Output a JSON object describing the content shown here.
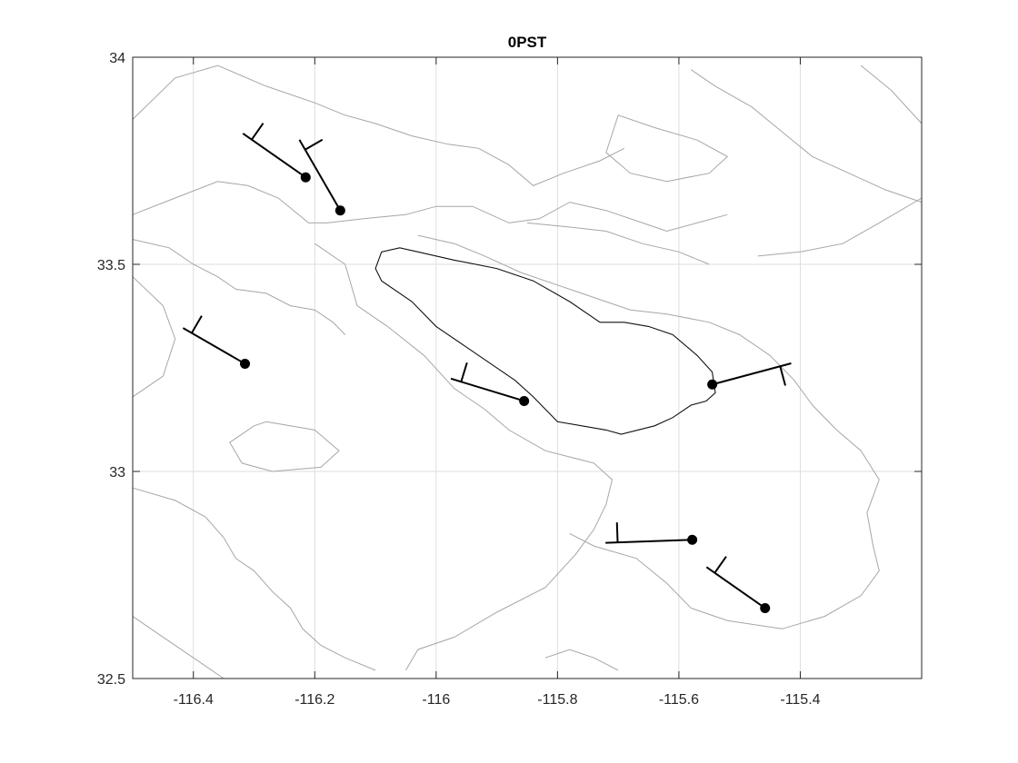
{
  "figure": {
    "title": "0PST"
  },
  "chart_data": {
    "type": "map",
    "xlim": [
      -116.5,
      -115.2
    ],
    "ylim": [
      32.5,
      34.0
    ],
    "xticks": [
      -116.4,
      -116.2,
      -116.0,
      -115.8,
      -115.6,
      -115.4
    ],
    "xtick_labels": [
      "-116.4",
      "-116.2",
      "-116",
      "-115.8",
      "-115.6",
      "-115.4"
    ],
    "yticks": [
      32.5,
      33.0,
      33.5,
      34.0
    ],
    "ytick_labels": [
      "32.5",
      "33",
      "33.5",
      "34"
    ],
    "grid": true,
    "stations": [
      {
        "lon": -116.215,
        "lat": 33.71,
        "barb_dir": 305,
        "barb_len": 0.15,
        "flags": 1
      },
      {
        "lon": -116.158,
        "lat": 33.63,
        "barb_dir": 330,
        "barb_len": 0.16,
        "flags": 1
      },
      {
        "lon": -116.315,
        "lat": 33.26,
        "barb_dir": 300,
        "barb_len": 0.14,
        "flags": 1
      },
      {
        "lon": -115.855,
        "lat": 33.17,
        "barb_dir": 287,
        "barb_len": 0.15,
        "flags": 1
      },
      {
        "lon": -115.545,
        "lat": 33.21,
        "barb_dir": 75,
        "barb_len": 0.16,
        "flags": 1
      },
      {
        "lon": -115.578,
        "lat": 32.835,
        "barb_dir": 268,
        "barb_len": 0.17,
        "flags": 1
      },
      {
        "lon": -115.458,
        "lat": 32.67,
        "barb_dir": 305,
        "barb_len": 0.14,
        "flags": 1
      }
    ],
    "lake_outline": [
      [
        -116.1,
        33.49
      ],
      [
        -116.09,
        33.53
      ],
      [
        -116.06,
        33.54
      ],
      [
        -116.03,
        33.53
      ],
      [
        -115.97,
        33.51
      ],
      [
        -115.9,
        33.49
      ],
      [
        -115.84,
        33.46
      ],
      [
        -115.78,
        33.41
      ],
      [
        -115.73,
        33.36
      ],
      [
        -115.69,
        33.36
      ],
      [
        -115.65,
        33.35
      ],
      [
        -115.61,
        33.33
      ],
      [
        -115.57,
        33.28
      ],
      [
        -115.545,
        33.24
      ],
      [
        -115.54,
        33.19
      ],
      [
        -115.555,
        33.17
      ],
      [
        -115.58,
        33.16
      ],
      [
        -115.61,
        33.13
      ],
      [
        -115.64,
        33.11
      ],
      [
        -115.695,
        33.09
      ],
      [
        -115.72,
        33.1
      ],
      [
        -115.76,
        33.11
      ],
      [
        -115.8,
        33.12
      ],
      [
        -115.84,
        33.18
      ],
      [
        -115.87,
        33.22
      ],
      [
        -115.91,
        33.26
      ],
      [
        -115.95,
        33.3
      ],
      [
        -116.0,
        33.35
      ],
      [
        -116.04,
        33.41
      ],
      [
        -116.09,
        33.46
      ]
    ],
    "contours": [
      [
        [
          -116.5,
          33.85
        ],
        [
          -116.43,
          33.95
        ],
        [
          -116.36,
          33.98
        ],
        [
          -116.28,
          33.93
        ],
        [
          -116.2,
          33.89
        ],
        [
          -116.15,
          33.86
        ],
        [
          -116.1,
          33.84
        ],
        [
          -116.04,
          33.81
        ],
        [
          -115.98,
          33.79
        ],
        [
          -115.93,
          33.78
        ],
        [
          -115.88,
          33.74
        ],
        [
          -115.84,
          33.69
        ],
        [
          -115.79,
          33.72
        ],
        [
          -115.73,
          33.75
        ],
        [
          -115.69,
          33.78
        ]
      ],
      [
        [
          -116.5,
          33.62
        ],
        [
          -116.43,
          33.66
        ],
        [
          -116.36,
          33.7
        ],
        [
          -116.31,
          33.69
        ],
        [
          -116.26,
          33.66
        ],
        [
          -116.21,
          33.6
        ],
        [
          -116.18,
          33.6
        ],
        [
          -116.12,
          33.61
        ],
        [
          -116.05,
          33.62
        ],
        [
          -116.0,
          33.64
        ],
        [
          -115.94,
          33.64
        ],
        [
          -115.88,
          33.6
        ],
        [
          -115.83,
          33.61
        ],
        [
          -115.78,
          33.65
        ],
        [
          -115.72,
          33.63
        ],
        [
          -115.66,
          33.6
        ],
        [
          -115.62,
          33.58
        ],
        [
          -115.57,
          33.6
        ],
        [
          -115.52,
          33.62
        ]
      ],
      [
        [
          -116.5,
          33.56
        ],
        [
          -116.44,
          33.54
        ],
        [
          -116.4,
          33.5
        ],
        [
          -116.36,
          33.47
        ],
        [
          -116.33,
          33.44
        ],
        [
          -116.28,
          33.43
        ],
        [
          -116.24,
          33.4
        ],
        [
          -116.2,
          33.39
        ],
        [
          -116.17,
          33.36
        ],
        [
          -116.15,
          33.33
        ]
      ],
      [
        [
          -116.5,
          33.47
        ],
        [
          -116.45,
          33.4
        ],
        [
          -116.43,
          33.32
        ],
        [
          -116.45,
          33.23
        ],
        [
          -116.5,
          33.18
        ]
      ],
      [
        [
          -116.28,
          33.12
        ],
        [
          -116.2,
          33.1
        ],
        [
          -116.16,
          33.05
        ],
        [
          -116.19,
          33.01
        ],
        [
          -116.27,
          33.0
        ],
        [
          -116.32,
          33.02
        ],
        [
          -116.34,
          33.07
        ],
        [
          -116.3,
          33.11
        ],
        [
          -116.28,
          33.12
        ]
      ],
      [
        [
          -116.5,
          32.96
        ],
        [
          -116.43,
          32.93
        ],
        [
          -116.38,
          32.89
        ],
        [
          -116.35,
          32.84
        ],
        [
          -116.33,
          32.79
        ],
        [
          -116.3,
          32.76
        ],
        [
          -116.27,
          32.71
        ],
        [
          -116.24,
          32.67
        ],
        [
          -116.22,
          32.62
        ],
        [
          -116.19,
          32.58
        ],
        [
          -116.15,
          32.55
        ],
        [
          -116.1,
          32.52
        ]
      ],
      [
        [
          -116.05,
          32.52
        ],
        [
          -116.03,
          32.57
        ],
        [
          -115.97,
          32.6
        ],
        [
          -115.9,
          32.66
        ],
        [
          -115.82,
          32.72
        ],
        [
          -115.77,
          32.8
        ],
        [
          -115.74,
          32.86
        ],
        [
          -115.72,
          32.92
        ],
        [
          -115.71,
          32.98
        ],
        [
          -115.74,
          33.02
        ],
        [
          -115.82,
          33.05
        ],
        [
          -115.88,
          33.1
        ],
        [
          -115.92,
          33.15
        ],
        [
          -115.97,
          33.2
        ],
        [
          -116.02,
          33.28
        ],
        [
          -116.08,
          33.35
        ],
        [
          -116.13,
          33.4
        ],
        [
          -116.15,
          33.5
        ],
        [
          -116.2,
          33.55
        ]
      ],
      [
        [
          -115.78,
          32.85
        ],
        [
          -115.74,
          32.82
        ],
        [
          -115.67,
          32.79
        ],
        [
          -115.62,
          32.73
        ],
        [
          -115.58,
          32.67
        ],
        [
          -115.52,
          32.64
        ],
        [
          -115.43,
          32.62
        ],
        [
          -115.36,
          32.65
        ],
        [
          -115.3,
          32.7
        ],
        [
          -115.27,
          32.76
        ],
        [
          -115.28,
          32.82
        ],
        [
          -115.29,
          32.9
        ],
        [
          -115.27,
          32.98
        ],
        [
          -115.3,
          33.05
        ],
        [
          -115.34,
          33.1
        ],
        [
          -115.38,
          33.16
        ],
        [
          -115.41,
          33.22
        ],
        [
          -115.45,
          33.28
        ],
        [
          -115.5,
          33.33
        ],
        [
          -115.55,
          33.36
        ],
        [
          -115.62,
          33.38
        ],
        [
          -115.68,
          33.39
        ],
        [
          -115.74,
          33.42
        ],
        [
          -115.8,
          33.45
        ],
        [
          -115.86,
          33.48
        ],
        [
          -115.92,
          33.52
        ],
        [
          -115.97,
          33.55
        ],
        [
          -116.03,
          33.57
        ]
      ],
      [
        [
          -115.47,
          33.52
        ],
        [
          -115.4,
          33.53
        ],
        [
          -115.33,
          33.55
        ],
        [
          -115.27,
          33.6
        ],
        [
          -115.2,
          33.66
        ]
      ],
      [
        [
          -115.3,
          33.98
        ],
        [
          -115.25,
          33.92
        ],
        [
          -115.2,
          33.84
        ]
      ],
      [
        [
          -115.58,
          33.97
        ],
        [
          -115.54,
          33.93
        ],
        [
          -115.48,
          33.88
        ],
        [
          -115.43,
          33.82
        ],
        [
          -115.38,
          33.76
        ],
        [
          -115.32,
          33.72
        ],
        [
          -115.26,
          33.68
        ],
        [
          -115.2,
          33.65
        ]
      ],
      [
        [
          -115.7,
          33.86
        ],
        [
          -115.64,
          33.83
        ],
        [
          -115.57,
          33.8
        ],
        [
          -115.52,
          33.76
        ],
        [
          -115.55,
          33.72
        ],
        [
          -115.62,
          33.7
        ],
        [
          -115.68,
          33.72
        ],
        [
          -115.72,
          33.77
        ],
        [
          -115.7,
          33.86
        ]
      ],
      [
        [
          -115.85,
          33.6
        ],
        [
          -115.78,
          33.59
        ],
        [
          -115.72,
          33.58
        ],
        [
          -115.66,
          33.55
        ],
        [
          -115.6,
          33.53
        ],
        [
          -115.55,
          33.5
        ]
      ],
      [
        [
          -116.5,
          32.65
        ],
        [
          -116.45,
          32.6
        ],
        [
          -116.4,
          32.55
        ],
        [
          -116.35,
          32.5
        ]
      ],
      [
        [
          -115.82,
          32.55
        ],
        [
          -115.78,
          32.57
        ],
        [
          -115.74,
          32.55
        ],
        [
          -115.7,
          32.52
        ]
      ]
    ]
  }
}
